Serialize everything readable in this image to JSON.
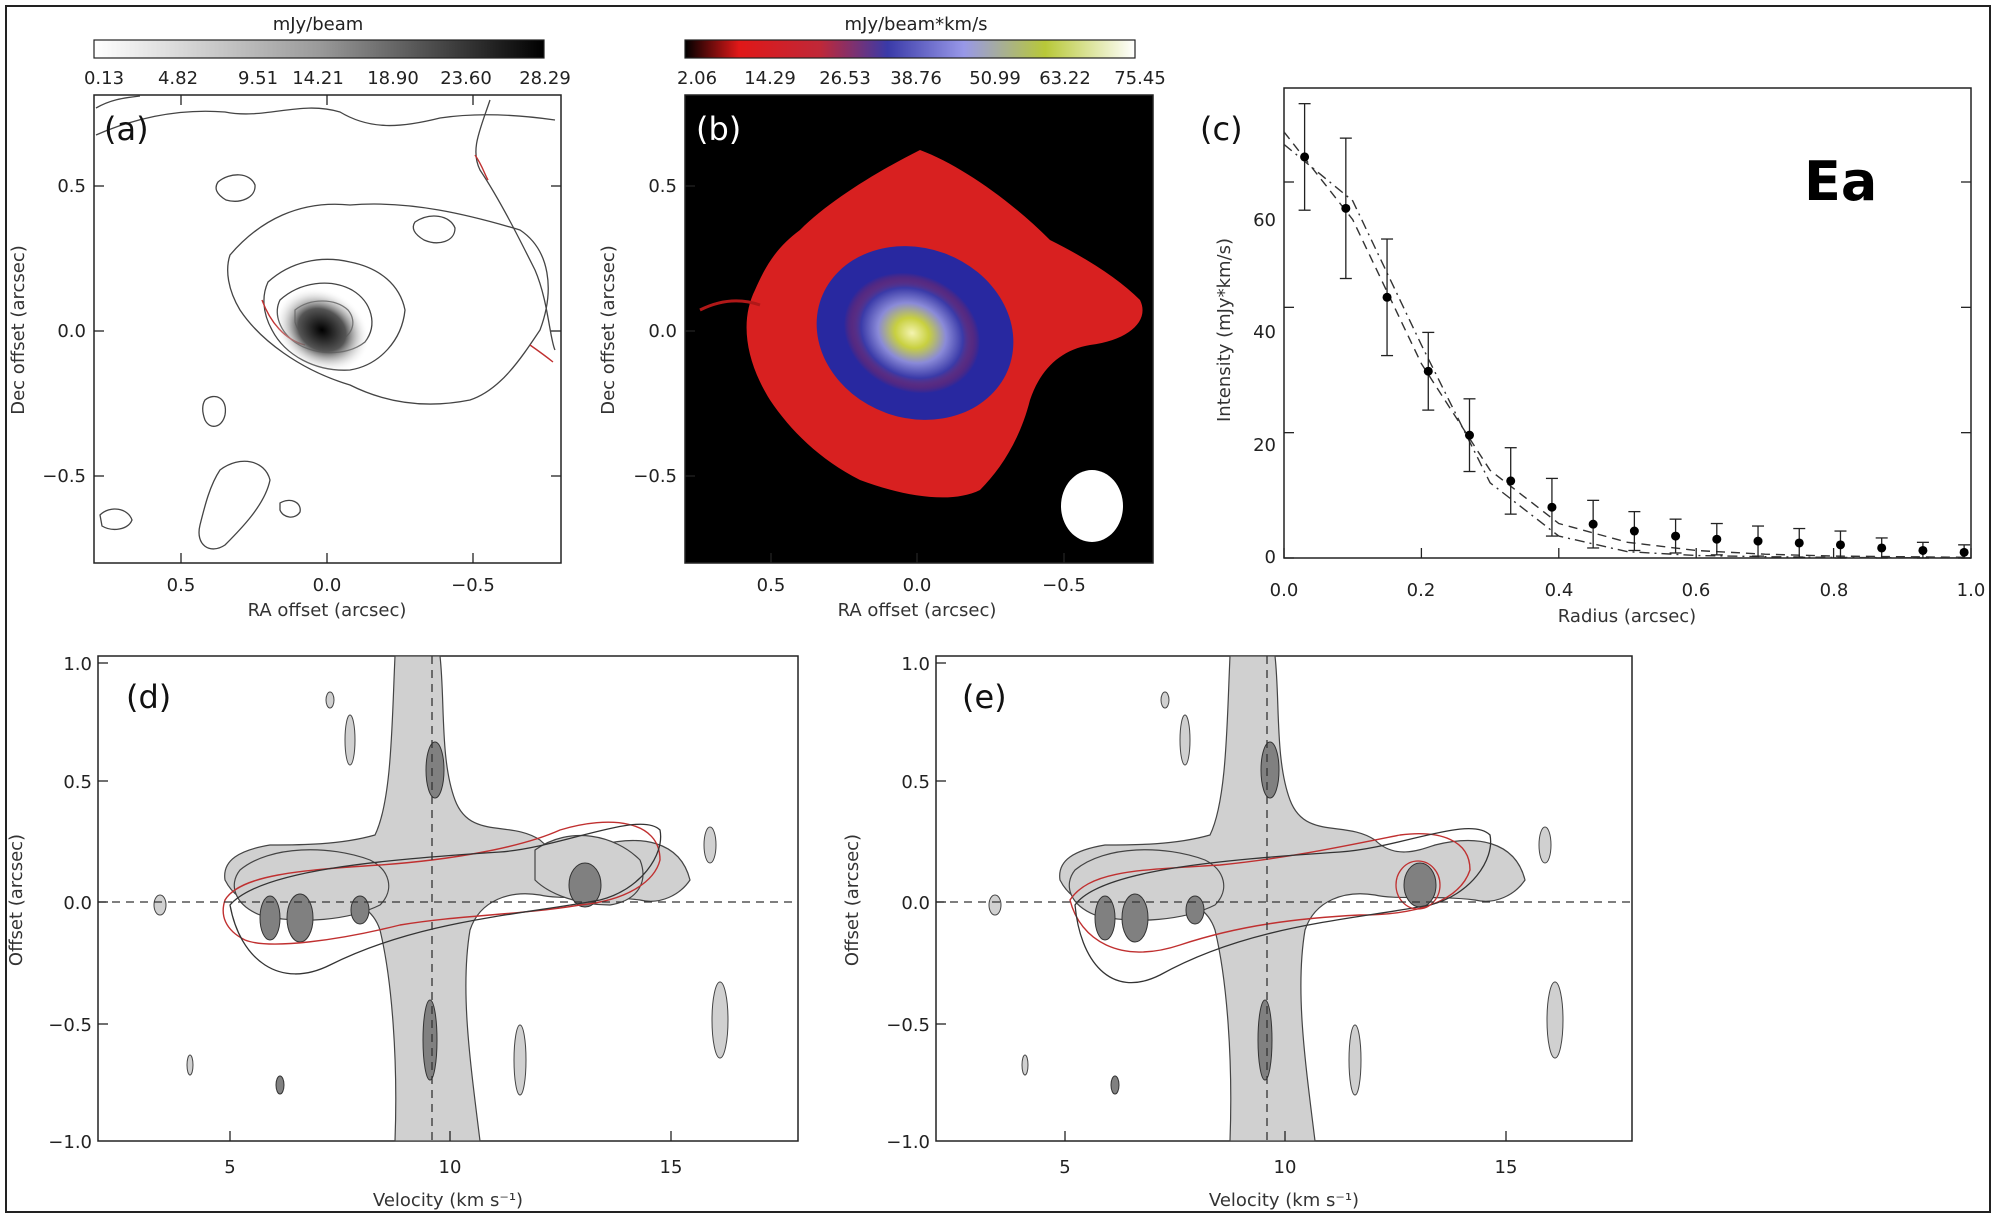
{
  "panel_a": {
    "label": "(a)",
    "colorbar_title": "mJy/beam",
    "colorbar_ticks": [
      "0.13",
      "4.82",
      "9.51",
      "14.21",
      "18.90",
      "23.60",
      "28.29"
    ],
    "x_ticks": [
      "0.5",
      "0.0",
      "−0.5"
    ],
    "y_ticks": [
      "0.5",
      "0.0",
      "−0.5"
    ],
    "xlabel": "RA offset (arcsec)",
    "ylabel": "Dec offset (arcsec)",
    "colormap": [
      "#ffffff",
      "#000000"
    ]
  },
  "panel_b": {
    "label": "(b)",
    "colorbar_title": "mJy/beam*km/s",
    "colorbar_ticks": [
      "2.06",
      "14.29",
      "26.53",
      "38.76",
      "50.99",
      "63.22",
      "75.45"
    ],
    "x_ticks": [
      "0.5",
      "0.0",
      "−0.5"
    ],
    "y_ticks": [
      "0.5",
      "0.0",
      "−0.5"
    ],
    "xlabel": "RA offset (arcsec)",
    "ylabel": "Dec offset (arcsec)",
    "colormap": [
      "#000000",
      "#e01818",
      "#3a3aa8",
      "#9090e0",
      "#c8d040",
      "#ffffff"
    ]
  },
  "panel_c": {
    "label": "(c)",
    "annotation": "Ea",
    "x_ticks": [
      "0.0",
      "0.2",
      "0.4",
      "0.6",
      "0.8",
      "1.0"
    ],
    "y_ticks": [
      "0",
      "20",
      "40",
      "60"
    ],
    "xlabel": "Radius (arcsec)",
    "ylabel": "Intensity (mJy*km/s)"
  },
  "panel_d": {
    "label": "(d)",
    "x_ticks": [
      "5",
      "10",
      "15"
    ],
    "y_ticks": [
      "1.0",
      "0.5",
      "0.0",
      "−0.5",
      "−1.0"
    ],
    "xlabel": "Velocity (km s⁻¹)",
    "ylabel": "Offset (arcsec)"
  },
  "panel_e": {
    "label": "(e)",
    "x_ticks": [
      "5",
      "10",
      "15"
    ],
    "y_ticks": [
      "1.0",
      "0.5",
      "0.0",
      "−0.5",
      "−1.0"
    ],
    "xlabel": "Velocity (km s⁻¹)",
    "ylabel": "Offset (arcsec)"
  },
  "chart_data": [
    {
      "type": "scatter",
      "panel": "c",
      "xlabel": "Radius (arcsec)",
      "ylabel": "Intensity (mJy*km/s)",
      "xlim": [
        0.0,
        1.0
      ],
      "ylim": [
        0,
        75
      ],
      "series": [
        {
          "x": [
            0.03,
            0.09,
            0.15,
            0.21,
            0.27,
            0.33,
            0.39,
            0.45,
            0.51,
            0.57,
            0.63,
            0.69,
            0.75,
            0.81,
            0.87,
            0.93,
            0.99
          ],
          "values": [
            64,
            55.8,
            41.6,
            29.8,
            19.6,
            12.3,
            8.1,
            5.4,
            4.3,
            3.5,
            3.0,
            2.7,
            2.4,
            2.1,
            1.6,
            1.2,
            0.9
          ],
          "errors": [
            8.5,
            11.2,
            9.3,
            6.2,
            5.8,
            5.3,
            4.6,
            3.8,
            3.1,
            2.7,
            2.5,
            2.4,
            2.3,
            2.2,
            1.6,
            1.3,
            1.2
          ]
        }
      ],
      "models": [
        {
          "style": "dashed",
          "x": [
            0.0,
            0.1,
            0.2,
            0.3,
            0.4,
            0.5,
            0.6,
            0.7,
            0.8,
            0.9,
            1.0
          ],
          "values": [
            68,
            54,
            31,
            14,
            5.5,
            2.5,
            1.2,
            0.6,
            0.3,
            0.2,
            0.1
          ]
        },
        {
          "style": "dash-dot",
          "x": [
            0.0,
            0.1,
            0.2,
            0.3,
            0.4,
            0.5,
            0.6,
            0.7,
            0.8,
            0.9,
            1.0
          ],
          "values": [
            66,
            57,
            34,
            12,
            3.5,
            1.0,
            0.4,
            0.2,
            0.1,
            0.05,
            0.0
          ]
        }
      ]
    }
  ]
}
